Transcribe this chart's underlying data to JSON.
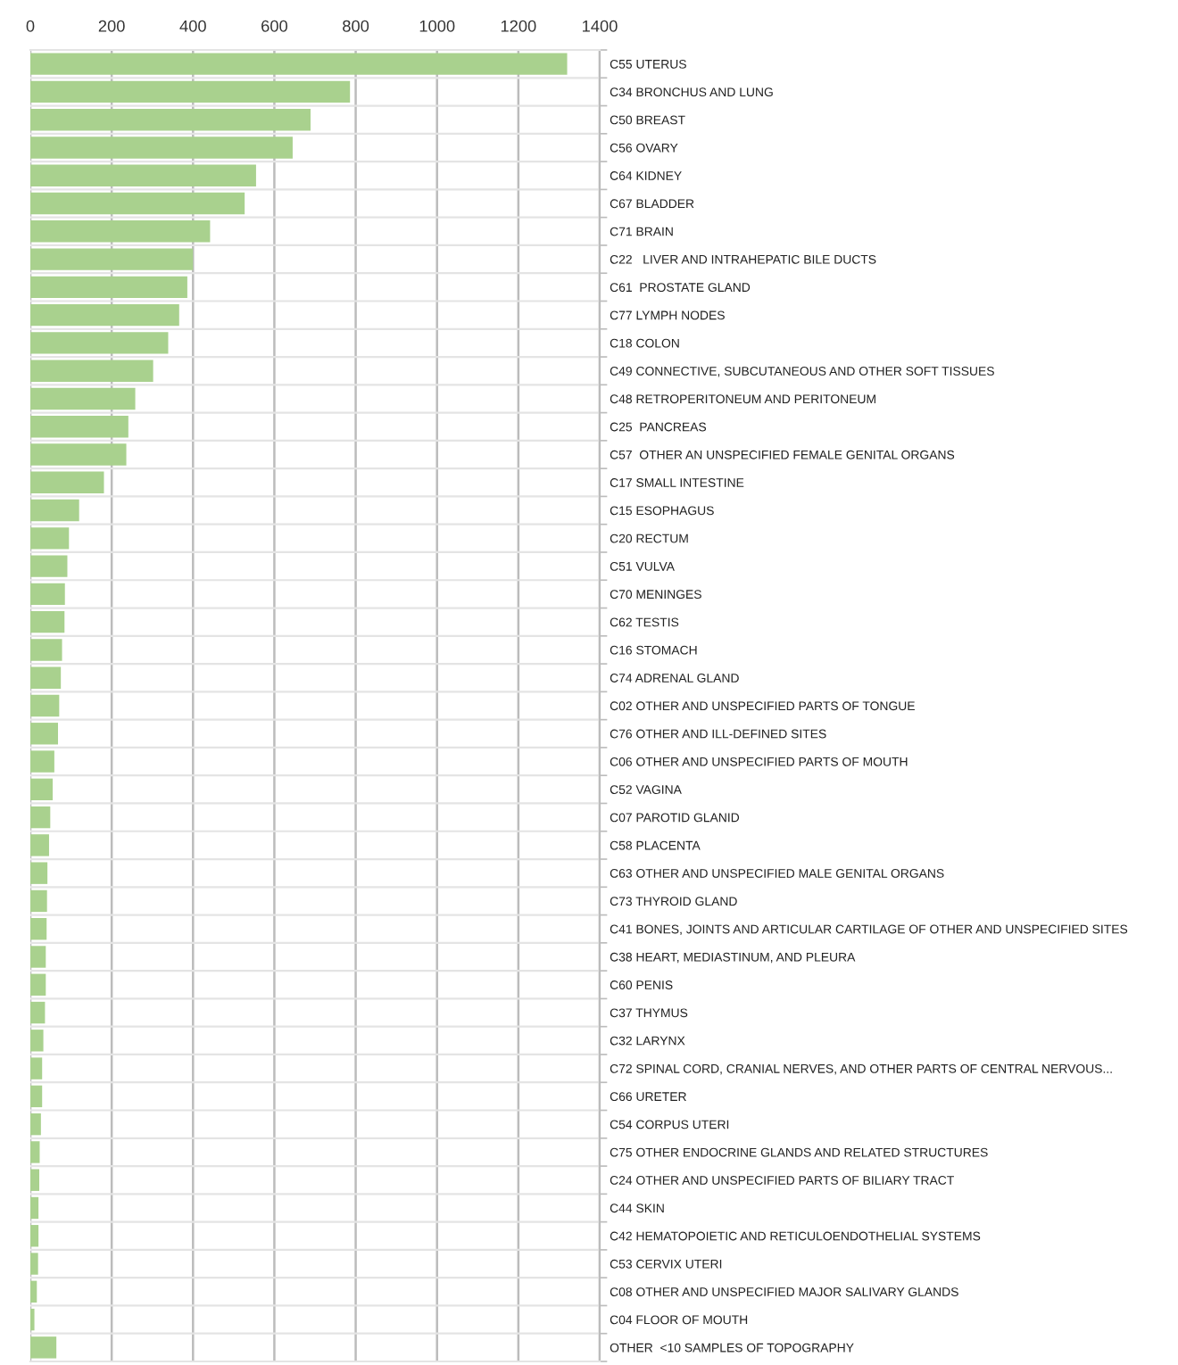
{
  "chart_data": {
    "type": "bar",
    "orientation": "horizontal",
    "categories": [
      "C55 UTERUS",
      "C34 BRONCHUS AND LUNG",
      "C50 BREAST",
      "C56 OVARY",
      "C64 KIDNEY",
      "C67 BLADDER",
      "C71 BRAIN",
      "C22   LIVER AND INTRAHEPATIC BILE DUCTS",
      "C61  PROSTATE GLAND",
      "C77 LYMPH NODES",
      "C18 COLON",
      "C49 CONNECTIVE, SUBCUTANEOUS AND OTHER SOFT TISSUES",
      "C48 RETROPERITONEUM AND PERITONEUM",
      "C25  PANCREAS",
      "C57  OTHER AN UNSPECIFIED FEMALE GENITAL ORGANS",
      "C17 SMALL INTESTINE",
      "C15 ESOPHAGUS",
      "C20 RECTUM",
      "C51 VULVA",
      "C70 MENINGES",
      "C62 TESTIS",
      "C16 STOMACH",
      "C74 ADRENAL GLAND",
      "C02 OTHER AND UNSPECIFIED PARTS OF TONGUE",
      "C76 OTHER AND ILL-DEFINED SITES",
      "C06 OTHER AND UNSPECIFIED PARTS OF MOUTH",
      "C52 VAGINA",
      "C07 PAROTID GLANID",
      "C58 PLACENTA",
      "C63 OTHER AND UNSPECIFIED MALE GENITAL ORGANS",
      "C73 THYROID GLAND",
      "C41 BONES, JOINTS AND ARTICULAR CARTILAGE OF OTHER AND UNSPECIFIED SITES",
      "C38 HEART, MEDIASTINUM, AND PLEURA",
      "C60 PENIS",
      "C37 THYMUS",
      "C32 LARYNX",
      "C72 SPINAL CORD, CRANIAL NERVES, AND OTHER PARTS OF CENTRAL NERVOUS...",
      "C66 URETER",
      "C54 CORPUS UTERI",
      "C75 OTHER ENDOCRINE GLANDS AND RELATED STRUCTURES",
      "C24 OTHER AND UNSPECIFIED PARTS OF BILIARY TRACT",
      "C44 SKIN",
      "C42 HEMATOPOIETIC AND RETICULOENDOTHELIAL SYSTEMS",
      "C53 CERVIX UTERI",
      "C08 OTHER AND UNSPECIFIED MAJOR SALIVARY GLANDS",
      "C04 FLOOR OF MOUTH",
      "OTHER  <10 SAMPLES OF TOPOGRAPHY"
    ],
    "values": [
      1320,
      786,
      689,
      645,
      555,
      527,
      442,
      400,
      386,
      366,
      339,
      302,
      258,
      241,
      236,
      181,
      120,
      95,
      91,
      85,
      84,
      78,
      75,
      71,
      68,
      59,
      55,
      49,
      46,
      42,
      41,
      40,
      38,
      38,
      36,
      32,
      29,
      29,
      26,
      23,
      22,
      20,
      20,
      19,
      16,
      10,
      64
    ],
    "color": "#a9d18e",
    "xlim": [
      0,
      1400
    ],
    "xticks": [
      0,
      200,
      400,
      600,
      800,
      1000,
      1200,
      1400
    ],
    "grid": true
  }
}
